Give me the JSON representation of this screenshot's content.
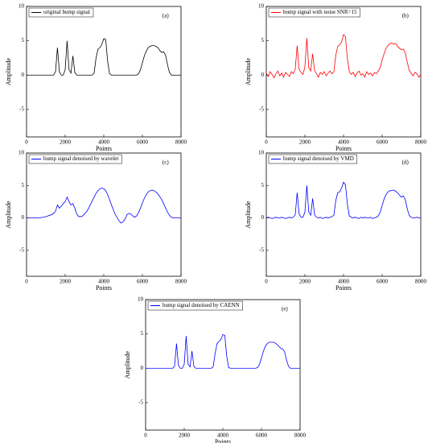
{
  "chart_data": [
    {
      "type": "line",
      "panel_label": "(a)",
      "xlabel": "Points",
      "ylabel": "Amplitude",
      "xlim": [
        0,
        8000
      ],
      "ylim": [
        -9,
        10
      ],
      "xticks": [
        0,
        2000,
        4000,
        6000,
        8000
      ],
      "yticks": [
        -5,
        0,
        5,
        10
      ],
      "legend": "upper left",
      "x": [
        0,
        100,
        200,
        300,
        400,
        500,
        600,
        700,
        800,
        900,
        1000,
        1100,
        1200,
        1300,
        1400,
        1500,
        1600,
        1700,
        1800,
        1900,
        2000,
        2100,
        2200,
        2300,
        2400,
        2500,
        2600,
        2700,
        2800,
        2900,
        3000,
        3100,
        3200,
        3300,
        3400,
        3500,
        3600,
        3700,
        3800,
        3900,
        4000,
        4100,
        4200,
        4300,
        4400,
        4500,
        4600,
        4700,
        4800,
        4900,
        5000,
        5100,
        5200,
        5300,
        5400,
        5500,
        5600,
        5700,
        5800,
        5900,
        6000,
        6100,
        6200,
        6300,
        6400,
        6500,
        6600,
        6700,
        6800,
        6900,
        7000,
        7100,
        7200,
        7300,
        7400,
        7500,
        7600,
        7700,
        7800,
        7900,
        8000
      ],
      "series": [
        {
          "name": "original bump signal",
          "color": "#000000",
          "values": [
            0,
            0,
            0,
            0,
            0,
            0,
            0,
            0,
            0,
            0,
            0,
            0,
            0,
            0,
            0,
            0.5,
            4,
            0.5,
            0,
            0,
            0.8,
            5,
            0.8,
            0.3,
            2.8,
            0.4,
            0,
            0,
            0,
            0,
            0,
            0,
            0,
            0,
            0,
            0.3,
            2.5,
            3.8,
            4,
            4.5,
            5.3,
            5.2,
            2,
            0.2,
            0,
            0,
            0,
            0,
            0,
            0,
            0,
            0,
            0,
            0,
            0,
            0,
            0,
            0,
            0.2,
            0.8,
            1.8,
            2.8,
            3.5,
            4,
            4.2,
            4.3,
            4.3,
            4.2,
            4,
            3.6,
            3.3,
            3.4,
            2.9,
            1.5,
            0.4,
            0,
            0,
            0,
            0,
            0,
            0
          ]
        }
      ]
    },
    {
      "type": "line",
      "panel_label": "(b)",
      "xlabel": "Points",
      "ylabel": "Amplitude",
      "xlim": [
        0,
        8000
      ],
      "ylim": [
        -9,
        10
      ],
      "xticks": [
        0,
        2000,
        4000,
        6000,
        8000
      ],
      "yticks": [
        -5,
        0,
        5,
        10
      ],
      "legend": "upper left",
      "x": [
        0,
        100,
        200,
        300,
        400,
        500,
        600,
        700,
        800,
        900,
        1000,
        1100,
        1200,
        1300,
        1400,
        1500,
        1600,
        1700,
        1800,
        1900,
        2000,
        2100,
        2200,
        2300,
        2400,
        2500,
        2600,
        2700,
        2800,
        2900,
        3000,
        3100,
        3200,
        3300,
        3400,
        3500,
        3600,
        3700,
        3800,
        3900,
        4000,
        4100,
        4200,
        4300,
        4400,
        4500,
        4600,
        4700,
        4800,
        4900,
        5000,
        5100,
        5200,
        5300,
        5400,
        5500,
        5600,
        5700,
        5800,
        5900,
        6000,
        6100,
        6200,
        6300,
        6400,
        6500,
        6600,
        6700,
        6800,
        6900,
        7000,
        7100,
        7200,
        7300,
        7400,
        7500,
        7600,
        7700,
        7800,
        7900,
        8000
      ],
      "series": [
        {
          "name": "bump signal with noise SNR=15",
          "color": "#ff0000",
          "values": [
            0.3,
            -0.2,
            0.5,
            0.1,
            -0.4,
            0.2,
            0.6,
            -0.1,
            0.3,
            -0.3,
            0.4,
            0.1,
            -0.2,
            0.5,
            0.2,
            0.9,
            4.3,
            0.8,
            0.4,
            0.1,
            1.2,
            5.4,
            1.1,
            0.6,
            3.1,
            0.7,
            0.2,
            -0.3,
            0.4,
            0.1,
            0.5,
            -0.1,
            0.3,
            0.6,
            0.2,
            0.5,
            2.9,
            4.2,
            4.4,
            4.8,
            5.9,
            5.6,
            2.4,
            0.5,
            0.1,
            0.4,
            -0.2,
            0.3,
            0.6,
            0,
            0.2,
            -0.3,
            0.5,
            0.1,
            0.3,
            -0.1,
            0.4,
            0.2,
            0.6,
            1.1,
            2.2,
            3.1,
            3.9,
            4.3,
            4.6,
            4.7,
            4.5,
            4.6,
            4.2,
            3.9,
            3.7,
            3.8,
            3.2,
            1.9,
            0.7,
            0.3,
            -0.1,
            0.4,
            0.2,
            -0.3,
            0.1
          ]
        }
      ]
    },
    {
      "type": "line",
      "panel_label": "(c)",
      "xlabel": "Points",
      "ylabel": "Amplitude",
      "xlim": [
        0,
        8000
      ],
      "ylim": [
        -9,
        10
      ],
      "xticks": [
        0,
        2000,
        4000,
        6000,
        8000
      ],
      "yticks": [
        -5,
        0,
        5,
        10
      ],
      "legend": "upper left",
      "x": [
        0,
        100,
        200,
        300,
        400,
        500,
        600,
        700,
        800,
        900,
        1000,
        1100,
        1200,
        1300,
        1400,
        1500,
        1600,
        1700,
        1800,
        1900,
        2000,
        2100,
        2200,
        2300,
        2400,
        2500,
        2600,
        2700,
        2800,
        2900,
        3000,
        3100,
        3200,
        3300,
        3400,
        3500,
        3600,
        3700,
        3800,
        3900,
        4000,
        4100,
        4200,
        4300,
        4400,
        4500,
        4600,
        4700,
        4800,
        4900,
        5000,
        5100,
        5200,
        5300,
        5400,
        5500,
        5600,
        5700,
        5800,
        5900,
        6000,
        6100,
        6200,
        6300,
        6400,
        6500,
        6600,
        6700,
        6800,
        6900,
        7000,
        7100,
        7200,
        7300,
        7400,
        7500,
        7600,
        7700,
        7800,
        7900,
        8000
      ],
      "series": [
        {
          "name": "bump signal denoised by wavelet",
          "color": "#0000ff",
          "values": [
            0,
            0,
            0,
            0,
            0,
            0,
            0,
            0,
            0.1,
            0.1,
            0.2,
            0.3,
            0.4,
            0.5,
            0.7,
            1,
            2,
            1.5,
            1.8,
            2.2,
            2.5,
            3.2,
            2.5,
            2,
            2.2,
            1.5,
            0.6,
            0.2,
            0.2,
            0.3,
            0.6,
            0.9,
            1.4,
            2,
            2.6,
            3.2,
            3.8,
            4.2,
            4.5,
            4.6,
            4.5,
            4.2,
            3.6,
            2.8,
            2,
            1.2,
            0.5,
            0,
            -0.5,
            -0.8,
            -0.6,
            -0.2,
            0.5,
            0.7,
            0.6,
            0.3,
            0.1,
            0.3,
            0.8,
            1.5,
            2.3,
            3,
            3.6,
            4,
            4.2,
            4.3,
            4.2,
            4,
            3.7,
            3.3,
            2.8,
            2.2,
            1.5,
            0.9,
            0.4,
            0.1,
            0,
            0,
            0,
            0,
            0
          ]
        }
      ]
    },
    {
      "type": "line",
      "panel_label": "(d)",
      "xlabel": "Points",
      "ylabel": "Amplitude",
      "xlim": [
        0,
        8000
      ],
      "ylim": [
        -9,
        10
      ],
      "xticks": [
        0,
        2000,
        4000,
        6000,
        8000
      ],
      "yticks": [
        -5,
        0,
        5,
        10
      ],
      "legend": "upper left",
      "x": [
        0,
        100,
        200,
        300,
        400,
        500,
        600,
        700,
        800,
        900,
        1000,
        1100,
        1200,
        1300,
        1400,
        1500,
        1600,
        1700,
        1800,
        1900,
        2000,
        2100,
        2200,
        2300,
        2400,
        2500,
        2600,
        2700,
        2800,
        2900,
        3000,
        3100,
        3200,
        3300,
        3400,
        3500,
        3600,
        3700,
        3800,
        3900,
        4000,
        4100,
        4200,
        4300,
        4400,
        4500,
        4600,
        4700,
        4800,
        4900,
        5000,
        5100,
        5200,
        5300,
        5400,
        5500,
        5600,
        5700,
        5800,
        5900,
        6000,
        6100,
        6200,
        6300,
        6400,
        6500,
        6600,
        6700,
        6800,
        6900,
        7000,
        7100,
        7200,
        7300,
        7400,
        7500,
        7600,
        7700,
        7800,
        7900,
        8000
      ],
      "series": [
        {
          "name": "bump signal denoised by VMD",
          "color": "#0000ff",
          "values": [
            0,
            0.1,
            0,
            -0.1,
            0,
            0.1,
            0,
            0,
            0.1,
            0,
            -0.1,
            0,
            0.1,
            0,
            0.1,
            0.5,
            3.9,
            0.6,
            0.1,
            0.1,
            0.9,
            5,
            0.9,
            0.4,
            3,
            0.5,
            0.1,
            0,
            0.1,
            -0.1,
            0,
            0.1,
            0,
            0.1,
            0.2,
            0.4,
            2.7,
            3.9,
            4,
            4.6,
            5.5,
            5.1,
            2.1,
            0.3,
            0.1,
            0,
            0.1,
            0,
            -0.1,
            0.1,
            0,
            0.1,
            0,
            0,
            0.1,
            -0.1,
            0,
            0.1,
            0.3,
            0.9,
            1.9,
            2.9,
            3.6,
            4,
            4.2,
            4.2,
            4.3,
            4.1,
            3.9,
            3.5,
            3.2,
            3.4,
            2.8,
            1.4,
            0.4,
            0.1,
            0,
            0,
            0.1,
            0,
            0
          ]
        }
      ]
    },
    {
      "type": "line",
      "panel_label": "(e)",
      "xlabel": "Points",
      "ylabel": "Amplitude",
      "xlim": [
        0,
        8000
      ],
      "ylim": [
        -9,
        10
      ],
      "xticks": [
        0,
        2000,
        4000,
        6000,
        8000
      ],
      "yticks": [
        -5,
        0,
        5,
        10
      ],
      "legend": "upper left",
      "x": [
        0,
        100,
        200,
        300,
        400,
        500,
        600,
        700,
        800,
        900,
        1000,
        1100,
        1200,
        1300,
        1400,
        1500,
        1600,
        1700,
        1800,
        1900,
        2000,
        2100,
        2200,
        2300,
        2400,
        2500,
        2600,
        2700,
        2800,
        2900,
        3000,
        3100,
        3200,
        3300,
        3400,
        3500,
        3600,
        3700,
        3800,
        3900,
        4000,
        4100,
        4200,
        4300,
        4400,
        4500,
        4600,
        4700,
        4800,
        4900,
        5000,
        5100,
        5200,
        5300,
        5400,
        5500,
        5600,
        5700,
        5800,
        5900,
        6000,
        6100,
        6200,
        6300,
        6400,
        6500,
        6600,
        6700,
        6800,
        6900,
        7000,
        7100,
        7200,
        7300,
        7400,
        7500,
        7600,
        7700,
        7800,
        7900,
        8000
      ],
      "series": [
        {
          "name": "bump signal denoised by CAENN",
          "color": "#0000ff",
          "values": [
            0,
            0,
            0,
            0,
            0,
            0,
            0,
            0,
            0,
            0,
            0,
            0,
            0,
            0,
            0,
            0.3,
            3.6,
            0.4,
            0,
            0,
            0.6,
            4.7,
            0.6,
            0.2,
            2.5,
            0.3,
            0,
            0,
            0,
            0,
            0,
            0,
            0,
            0,
            0,
            0.2,
            2.2,
            3.6,
            3.9,
            4.2,
            4.9,
            4.8,
            1.8,
            0.1,
            0,
            0,
            0,
            0,
            0,
            0,
            0,
            0,
            0,
            0,
            0,
            0,
            0,
            0,
            0.1,
            0.6,
            1.5,
            2.5,
            3.2,
            3.6,
            3.8,
            3.8,
            3.8,
            3.7,
            3.5,
            3.2,
            2.9,
            2.8,
            2.4,
            1.2,
            0.3,
            0,
            0,
            0,
            0,
            0,
            0
          ]
        }
      ]
    }
  ]
}
